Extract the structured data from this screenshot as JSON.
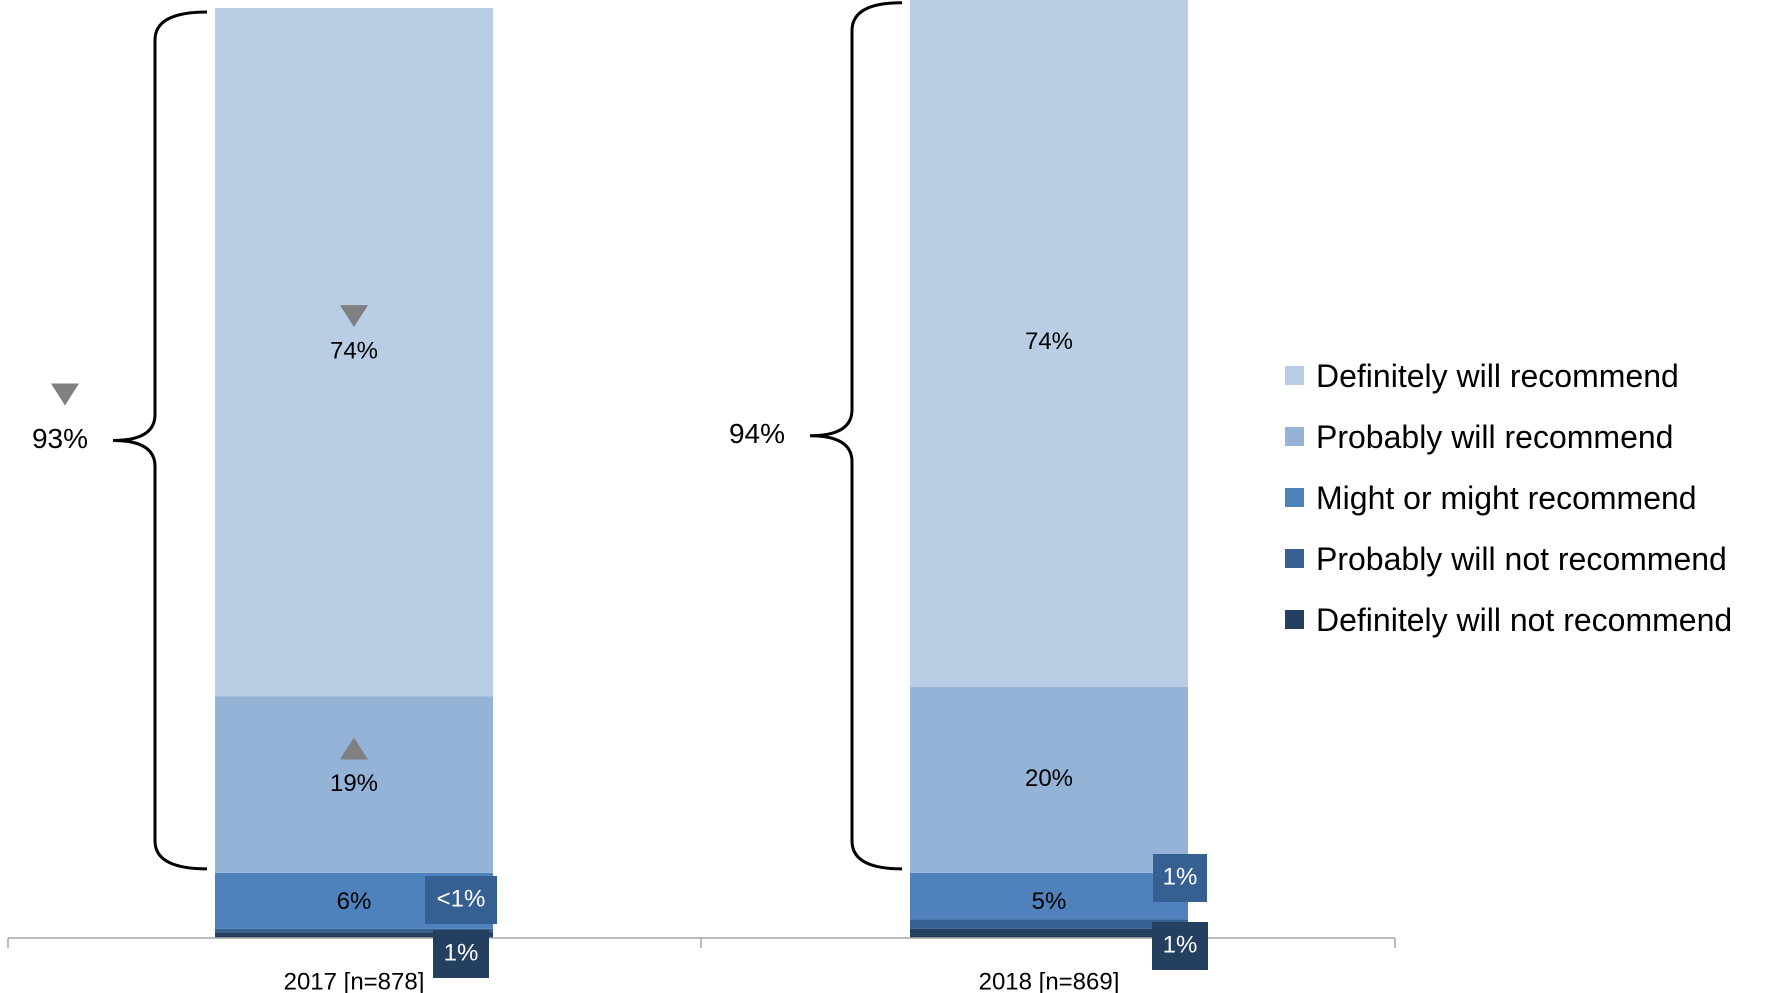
{
  "chart_data": {
    "type": "bar",
    "stacked": true,
    "categories": [
      "2017 [n=878]",
      "2018 [n=869]"
    ],
    "series": [
      {
        "name": "Definitely will recommend",
        "color": "#b9cde5",
        "values": [
          74,
          74
        ],
        "labels": [
          "74%",
          "74%"
        ]
      },
      {
        "name": "Probably will recommend",
        "color": "#95b3d7",
        "values": [
          19,
          20
        ],
        "labels": [
          "19%",
          "20%"
        ]
      },
      {
        "name": "Might or might recommend",
        "color": "#4f81bd",
        "values": [
          6,
          5
        ],
        "labels": [
          "6%",
          "5%"
        ]
      },
      {
        "name": "Probably will not recommend",
        "color": "#376092",
        "values": [
          0.4,
          1
        ],
        "labels": [
          "<1%",
          "1%"
        ]
      },
      {
        "name": "Definitely will not recommend",
        "color": "#243f60",
        "values": [
          0.6,
          1
        ],
        "labels": [
          "1%",
          "1%"
        ]
      }
    ],
    "totals": [
      {
        "label": "93%",
        "series": [
          "Definitely will recommend",
          "Probably will recommend"
        ]
      },
      {
        "label": "94%",
        "series": [
          "Definitely will recommend",
          "Probably will recommend"
        ]
      }
    ],
    "significance_markers": [
      {
        "category": "2017 [n=878]",
        "target": "total",
        "direction": "down",
        "color": "#808080"
      },
      {
        "category": "2017 [n=878]",
        "target": "Definitely will recommend",
        "direction": "down",
        "color": "#808080"
      },
      {
        "category": "2017 [n=878]",
        "target": "Probably will recommend",
        "direction": "up",
        "color": "#808080"
      }
    ],
    "ylim": [
      0,
      100
    ],
    "legend_position": "right",
    "grid": false
  }
}
